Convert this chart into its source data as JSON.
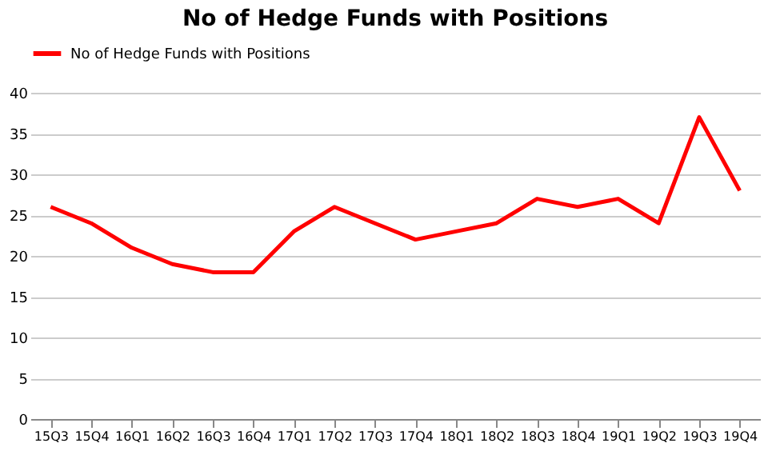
{
  "chart_data": {
    "type": "line",
    "title": "No of Hedge Funds with Positions",
    "categories": [
      "15Q3",
      "15Q4",
      "16Q1",
      "16Q2",
      "16Q3",
      "16Q4",
      "17Q1",
      "17Q2",
      "17Q3",
      "17Q4",
      "18Q1",
      "18Q2",
      "18Q3",
      "18Q4",
      "19Q1",
      "19Q2",
      "19Q3",
      "19Q4"
    ],
    "series": [
      {
        "name": "No of Hedge Funds with Positions",
        "color": "#ff0000",
        "values": [
          26,
          24,
          21,
          19,
          18,
          18,
          23,
          26,
          24,
          22,
          23,
          24,
          27,
          26,
          27,
          24,
          37,
          28
        ]
      }
    ],
    "ylim": [
      0,
      40
    ],
    "yticks": [
      0,
      5,
      10,
      15,
      20,
      25,
      30,
      35,
      40
    ],
    "grid": "y",
    "legend": "top",
    "marker": "none",
    "line_style": "solid"
  }
}
